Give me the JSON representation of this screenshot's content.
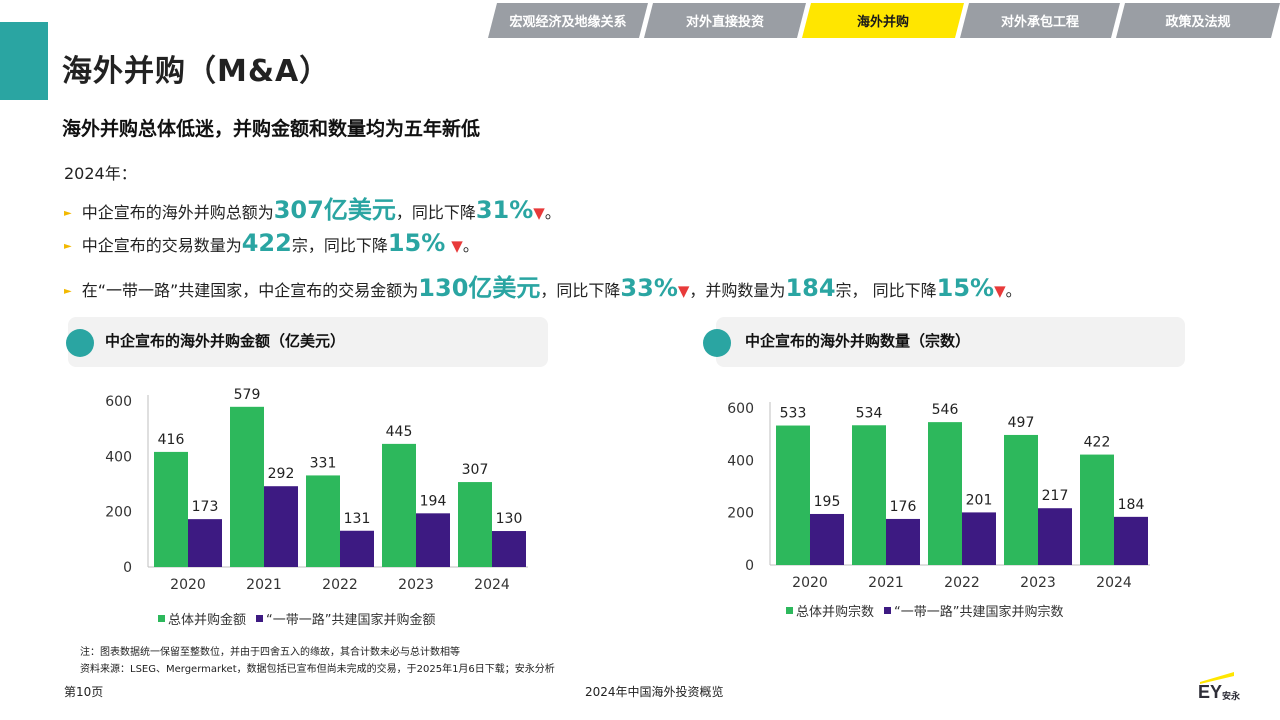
{
  "tabs": [
    "宏观经济及地缘关系",
    "对外直接投资",
    "海外并购",
    "对外承包工程",
    "政策及法规"
  ],
  "active_tab": 2,
  "page_title": "海外并购（M&A）",
  "subtitle": "海外并购总体低迷，并购金额和数量均为五年新低",
  "year_label": "2024年：",
  "bullets": [
    {
      "p1": "中企宣布的海外并购总额为",
      "v1": "307亿美元",
      "p2": "，同比下降",
      "v2": "31%",
      "p3": "。"
    },
    {
      "p1": "中企宣布的交易数量为",
      "v1": "422",
      "p2": "宗，同比下降 ",
      "v2": "15%",
      "p3": "。"
    },
    {
      "p1": "在“一带一路”共建国家，中企宣布的交易金额为",
      "v1": "130亿美元",
      "p2": "，同比下降",
      "v2": "33%",
      "p3": "，并购数量为 ",
      "v3": "184",
      "p4": "宗， 同比下降 ",
      "v4": "15%",
      "p5": "。"
    }
  ],
  "down_mark": "▼",
  "bullet_arrow": "►",
  "colors": {
    "accent": "#2aa5a2",
    "green": "#2db85c",
    "purple": "#3d1a82",
    "tab_active": "#ffe600",
    "tab": "#9a9ea4",
    "down": "#e83a3a"
  },
  "chart_data": [
    {
      "type": "bar",
      "title": "中企宣布的海外并购金额（亿美元）",
      "categories": [
        "2020",
        "2021",
        "2022",
        "2023",
        "2024"
      ],
      "series": [
        {
          "name": "总体并购金额",
          "values": [
            416,
            579,
            331,
            445,
            307
          ]
        },
        {
          "name": "“一带一路”共建国家并购金额",
          "values": [
            173,
            292,
            131,
            194,
            130
          ]
        }
      ],
      "yticks": [
        0,
        200,
        400,
        600
      ],
      "ylim": [
        0,
        600
      ]
    },
    {
      "type": "bar",
      "title": "中企宣布的海外并购数量（宗数）",
      "categories": [
        "2020",
        "2021",
        "2022",
        "2023",
        "2024"
      ],
      "series": [
        {
          "name": "总体并购宗数",
          "values": [
            533,
            534,
            546,
            497,
            422
          ]
        },
        {
          "name": "“一带一路”共建国家并购宗数",
          "values": [
            195,
            176,
            201,
            217,
            184
          ]
        }
      ],
      "yticks": [
        0,
        200,
        400,
        600
      ],
      "ylim": [
        0,
        600
      ]
    }
  ],
  "notes": [
    "注：图表数据统一保留至整数位，并由于四舍五入的缘故，其合计数未必与总计数相等",
    "资料来源：LSEG、Mergermarket，数据包括已宣布但尚未完成的交易，于2025年1月6日下载；安永分析"
  ],
  "footer": {
    "page": "第10页",
    "center": "2024年中国海外投资概览"
  },
  "logo": {
    "text": "EY",
    "sub": "安永"
  }
}
